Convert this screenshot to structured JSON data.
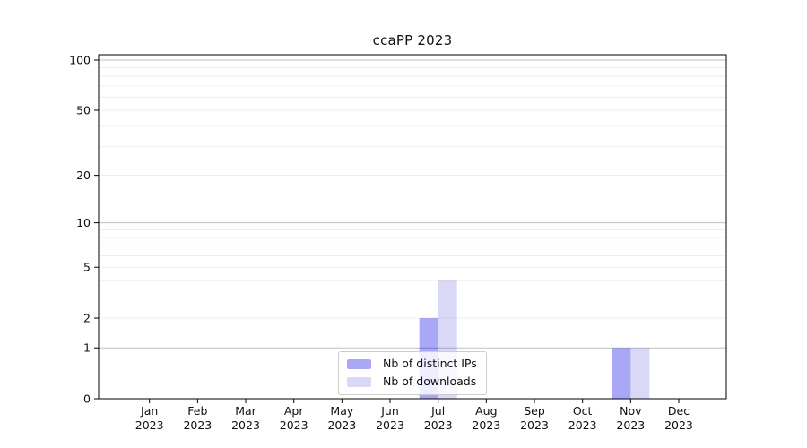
{
  "figure": {
    "background": "#ffffff",
    "text_color": "#0f0f0f",
    "frame_color": "#000000"
  },
  "chart_data": {
    "type": "bar",
    "title": "ccaPP 2023",
    "categories": [
      "Jan 2023",
      "Feb 2023",
      "Mar 2023",
      "Apr 2023",
      "May 2023",
      "Jun 2023",
      "Jul 2023",
      "Aug 2023",
      "Sep 2023",
      "Oct 2023",
      "Nov 2023",
      "Dec 2023"
    ],
    "series": [
      {
        "name": "Nb of distinct IPs",
        "color": "rgba(0,0,232,0.34)",
        "values": [
          0,
          0,
          0,
          0,
          0,
          0,
          2,
          0,
          0,
          0,
          1,
          0
        ]
      },
      {
        "name": "Nb of downloads",
        "color": "rgba(0,0,200,0.15)",
        "values": [
          0,
          0,
          0,
          0,
          0,
          0,
          4,
          0,
          0,
          0,
          1,
          0
        ]
      }
    ],
    "xlabel": "",
    "ylabel": "",
    "yscale": "log1p",
    "ylim": [
      0,
      108
    ],
    "y_tick_labels": [
      0,
      1,
      2,
      5,
      10,
      20,
      50,
      100
    ],
    "grid": {
      "enabled": true,
      "major_values": [
        1,
        10,
        100
      ],
      "minor_values": [
        2,
        3,
        4,
        5,
        6,
        7,
        8,
        9,
        20,
        30,
        40,
        50,
        60,
        70,
        80,
        90
      ],
      "major_color": "#c0c0c0",
      "minor_color": "#e9e9e9"
    },
    "legend": {
      "position": "lower center"
    }
  }
}
